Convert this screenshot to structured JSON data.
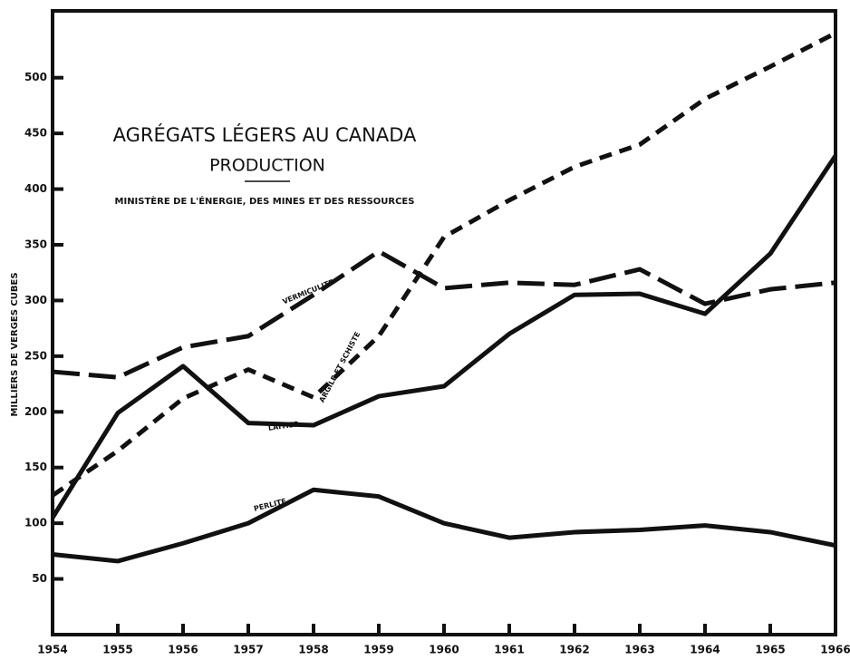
{
  "chart_data": {
    "type": "line",
    "title": "AGRÉGATS LÉGERS AU CANADA",
    "subtitle": "PRODUCTION",
    "source": "MINISTÈRE DE L'ÉNERGIE, DES MINES ET DES RESSOURCES",
    "y_label": "MILLIERS DE VERGES CUBES",
    "x": [
      1954,
      1955,
      1956,
      1957,
      1958,
      1959,
      1960,
      1961,
      1962,
      1963,
      1964,
      1965,
      1966
    ],
    "xlim": [
      1954,
      1966
    ],
    "xticks": [
      1954,
      1955,
      1956,
      1957,
      1958,
      1959,
      1960,
      1961,
      1962,
      1963,
      1964,
      1965,
      1966
    ],
    "ylim": [
      0,
      560
    ],
    "yticks": [
      50,
      100,
      150,
      200,
      250,
      300,
      350,
      400,
      450,
      500
    ],
    "series": [
      {
        "name": "VERMICULITE",
        "color": "#111111",
        "dash": "long",
        "values": [
          236,
          231,
          258,
          268,
          305,
          344,
          311,
          316,
          314,
          328,
          297,
          310,
          316
        ]
      },
      {
        "name": "ARGILE ET SCHISTE",
        "color": "#111111",
        "dash": "short",
        "values": [
          125,
          165,
          212,
          238,
          213,
          268,
          357,
          390,
          420,
          440,
          481,
          510,
          540
        ]
      },
      {
        "name": "LAITIER",
        "color": "#111111",
        "dash": "solid",
        "values": [
          105,
          199,
          241,
          190,
          188,
          214,
          223,
          270,
          305,
          306,
          288,
          342,
          430
        ]
      },
      {
        "name": "PERLITE",
        "color": "#111111",
        "dash": "solid",
        "values": [
          72,
          66,
          82,
          100,
          130,
          124,
          100,
          87,
          92,
          94,
          98,
          92,
          80
        ]
      }
    ]
  }
}
